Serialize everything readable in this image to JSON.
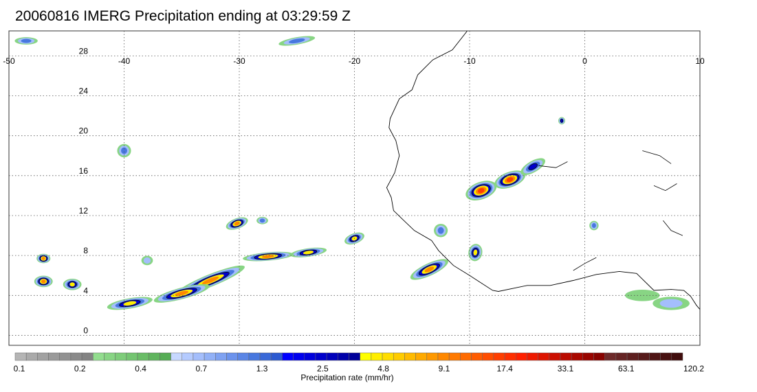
{
  "title": "20060816 IMERG Precipitation ending at 03:29:59 Z",
  "map": {
    "lon_range": [
      -50,
      10
    ],
    "lat_range": [
      -1,
      30.5
    ],
    "lon_ticks": [
      {
        "value": -50,
        "label": "-50"
      },
      {
        "value": -40,
        "label": "-40"
      },
      {
        "value": -30,
        "label": "-30"
      },
      {
        "value": -20,
        "label": "-20"
      },
      {
        "value": -10,
        "label": "-10"
      },
      {
        "value": 0,
        "label": "0"
      },
      {
        "value": 10,
        "label": "10"
      }
    ],
    "lat_ticks": [
      {
        "value": 0,
        "label": "0"
      },
      {
        "value": 4,
        "label": "4"
      },
      {
        "value": 8,
        "label": "8"
      },
      {
        "value": 12,
        "label": "12"
      },
      {
        "value": 16,
        "label": "16"
      },
      {
        "value": 20,
        "label": "20"
      },
      {
        "value": 24,
        "label": "24"
      },
      {
        "value": 28,
        "label": "28"
      }
    ],
    "grid": "dotted",
    "coastline": [
      [
        -10.2,
        30.5
      ],
      [
        -11.5,
        28.6
      ],
      [
        -13.2,
        27.6
      ],
      [
        -14.5,
        26.1
      ],
      [
        -15.0,
        24.6
      ],
      [
        -16.1,
        23.7
      ],
      [
        -16.9,
        21.7
      ],
      [
        -17.0,
        20.8
      ],
      [
        -16.4,
        19.5
      ],
      [
        -16.1,
        18.0
      ],
      [
        -16.5,
        16.3
      ],
      [
        -17.2,
        14.8
      ],
      [
        -16.8,
        13.8
      ],
      [
        -16.6,
        12.5
      ],
      [
        -15.8,
        11.6
      ],
      [
        -14.8,
        10.5
      ],
      [
        -13.3,
        9.5
      ],
      [
        -12.7,
        8.5
      ],
      [
        -11.4,
        7.0
      ],
      [
        -10.0,
        6.0
      ],
      [
        -8.0,
        4.5
      ],
      [
        -7.5,
        4.4
      ],
      [
        -5.0,
        5.0
      ],
      [
        -3.0,
        5.0
      ],
      [
        -1.0,
        5.5
      ],
      [
        1.0,
        6.1
      ],
      [
        3.0,
        6.4
      ],
      [
        4.5,
        6.2
      ],
      [
        6.0,
        4.5
      ],
      [
        7.5,
        4.6
      ],
      [
        8.6,
        4.5
      ],
      [
        9.2,
        3.9
      ],
      [
        9.7,
        3.0
      ],
      [
        10,
        2.6
      ]
    ],
    "inland_features": [
      [
        [
          -4.0,
          17.0
        ],
        [
          -2.5,
          16.8
        ],
        [
          -1.5,
          17.4
        ]
      ],
      [
        [
          5.0,
          18.5
        ],
        [
          6.5,
          18.0
        ],
        [
          7.5,
          17.2
        ]
      ],
      [
        [
          6.0,
          15.0
        ],
        [
          7.0,
          14.5
        ],
        [
          8.0,
          15.2
        ]
      ],
      [
        [
          6.8,
          11.5
        ],
        [
          7.5,
          10.5
        ],
        [
          8.5,
          10.0
        ]
      ],
      [
        [
          -1.0,
          6.5
        ],
        [
          0.0,
          7.2
        ],
        [
          1.0,
          7.8
        ]
      ]
    ],
    "precip_cells": [
      {
        "lon": -32.5,
        "lat": 5.5,
        "rx": 3.2,
        "ry": 0.55,
        "rate": 12,
        "rot": -22
      },
      {
        "lon": -35.0,
        "lat": 4.2,
        "rx": 2.5,
        "ry": 0.5,
        "rate": 9.1,
        "rot": -15
      },
      {
        "lon": -39.5,
        "lat": 3.2,
        "rx": 2.0,
        "ry": 0.45,
        "rate": 4.8,
        "rot": -10
      },
      {
        "lon": -27.5,
        "lat": 7.9,
        "rx": 2.2,
        "ry": 0.35,
        "rate": 9.1,
        "rot": -5
      },
      {
        "lon": -24.0,
        "lat": 8.3,
        "rx": 1.6,
        "ry": 0.35,
        "rate": 4.8,
        "rot": -8
      },
      {
        "lon": -20.0,
        "lat": 9.7,
        "rx": 0.9,
        "ry": 0.45,
        "rate": 4.8,
        "rot": -20
      },
      {
        "lon": -47.0,
        "lat": 5.4,
        "rx": 0.8,
        "ry": 0.5,
        "rate": 9.1,
        "rot": 0
      },
      {
        "lon": -44.5,
        "lat": 5.1,
        "rx": 0.8,
        "ry": 0.5,
        "rate": 4.8,
        "rot": 0
      },
      {
        "lon": -47.0,
        "lat": 7.7,
        "rx": 0.6,
        "ry": 0.4,
        "rate": 9.1,
        "rot": 0
      },
      {
        "lon": -13.5,
        "lat": 6.6,
        "rx": 1.8,
        "ry": 0.55,
        "rate": 12,
        "rot": -25
      },
      {
        "lon": -9.5,
        "lat": 8.3,
        "rx": 0.6,
        "ry": 0.8,
        "rate": 4.8,
        "rot": 10
      },
      {
        "lon": -9.0,
        "lat": 14.5,
        "rx": 1.4,
        "ry": 0.8,
        "rate": 17.4,
        "rot": -20
      },
      {
        "lon": -6.5,
        "lat": 15.6,
        "rx": 1.4,
        "ry": 0.7,
        "rate": 17.4,
        "rot": -20
      },
      {
        "lon": -4.5,
        "lat": 16.9,
        "rx": 1.2,
        "ry": 0.5,
        "rate": 2.5,
        "rot": -30
      },
      {
        "lon": -40.0,
        "lat": 18.5,
        "rx": 0.6,
        "ry": 0.6,
        "rate": 1.3,
        "rot": 0
      },
      {
        "lon": -48.5,
        "lat": 29.5,
        "rx": 1.0,
        "ry": 0.3,
        "rate": 1.3,
        "rot": 0
      },
      {
        "lon": -25.0,
        "lat": 29.5,
        "rx": 1.6,
        "ry": 0.3,
        "rate": 1.3,
        "rot": -10
      },
      {
        "lon": 7.5,
        "lat": 3.2,
        "rx": 1.6,
        "ry": 0.6,
        "rate": 0.7,
        "rot": 0
      },
      {
        "lon": -12.5,
        "lat": 10.5,
        "rx": 0.6,
        "ry": 0.6,
        "rate": 1.3,
        "rot": 0
      },
      {
        "lon": -30.2,
        "lat": 11.2,
        "rx": 1.0,
        "ry": 0.45,
        "rate": 9.1,
        "rot": -20
      },
      {
        "lon": -28.0,
        "lat": 11.5,
        "rx": 0.5,
        "ry": 0.3,
        "rate": 1.3,
        "rot": 0
      },
      {
        "lon": -38.0,
        "lat": 7.5,
        "rx": 0.5,
        "ry": 0.4,
        "rate": 0.7,
        "rot": 0
      },
      {
        "lon": -2.0,
        "lat": 21.5,
        "rx": 0.3,
        "ry": 0.3,
        "rate": 2.5,
        "rot": 0
      },
      {
        "lon": 0.8,
        "lat": 11.0,
        "rx": 0.4,
        "ry": 0.4,
        "rate": 1.3,
        "rot": 0
      },
      {
        "lon": 5.0,
        "lat": 4.0,
        "rx": 1.5,
        "ry": 0.5,
        "rate": 0.4,
        "rot": 0
      }
    ]
  },
  "colorbar": {
    "xlabel": "Precipitation rate (mm/hr)",
    "tick_labels": [
      "0.1",
      "0.2",
      "0.4",
      "0.7",
      "1.3",
      "2.5",
      "4.8",
      "9.1",
      "17.4",
      "33.1",
      "63.1",
      "120.2"
    ],
    "colors": [
      "#b5b5b5",
      "#aaaaaa",
      "#a2a2a2",
      "#9a9a9a",
      "#929292",
      "#8a8a8a",
      "#838383",
      "#92dd8e",
      "#88d584",
      "#7ecd7a",
      "#74c571",
      "#6abd67",
      "#60b55e",
      "#56ad55",
      "#c7d8ff",
      "#b5cbff",
      "#a4befc",
      "#92b1f7",
      "#7fa2f2",
      "#6c93ed",
      "#5b86e6",
      "#4878df",
      "#3a69d8",
      "#2c5ad1",
      "#0000ff",
      "#0000ee",
      "#0000dd",
      "#0000cc",
      "#0000bb",
      "#0000aa",
      "#00009a",
      "#ffff00",
      "#ffee00",
      "#ffdd00",
      "#ffcc00",
      "#ffbb00",
      "#ffaa00",
      "#ff9900",
      "#ff8800",
      "#ff7a00",
      "#ff6b00",
      "#ff5c00",
      "#ff4d00",
      "#ff3e00",
      "#ff2f00",
      "#ff2000",
      "#ee1a00",
      "#dd1400",
      "#cc0f00",
      "#bb0b00",
      "#aa0800",
      "#990500",
      "#880300",
      "#6e2a2a",
      "#662424",
      "#5e1f1f",
      "#561a1a",
      "#4f1515",
      "#481111",
      "#400d0d"
    ]
  }
}
